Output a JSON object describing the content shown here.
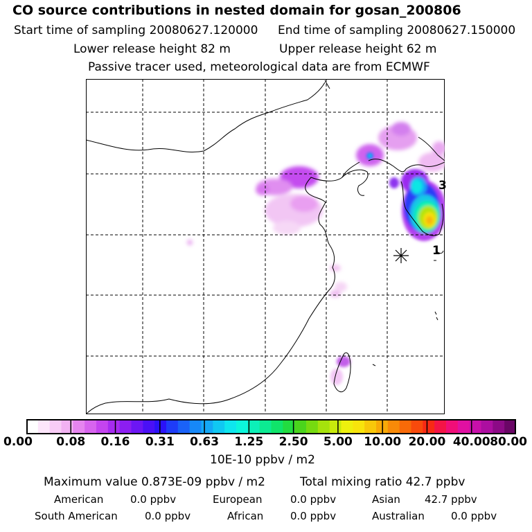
{
  "header": {
    "title": "CO  source contributions in nested domain for gosan_200806",
    "start_time": "Start time of sampling 20080627.120000",
    "end_time": "End time of sampling 20080627.150000",
    "lower_height": "Lower release height   82 m",
    "upper_height": "Upper release height   62 m",
    "tracer_note": "Passive tracer used, meteorological data are from ECMWF"
  },
  "map": {
    "station_symbol": "receptor-star-icon",
    "marker_1": "1",
    "marker_3": "3"
  },
  "colorbar": {
    "tick_labels": [
      "0.00",
      "0.08",
      "0.16",
      "0.31",
      "0.63",
      "1.25",
      "2.50",
      "5.00",
      "10.00",
      "20.00",
      "40.00",
      "80.00"
    ],
    "units": "10E-10 ppbv / m2",
    "colors": [
      "#ffffff",
      "#fde6fb",
      "#f8ccf6",
      "#f2b2f2",
      "#e685ef",
      "#d764ee",
      "#c444ef",
      "#a62bf0",
      "#8c1ef2",
      "#6c16f4",
      "#4a10f6",
      "#2a12f8",
      "#1e3cf8",
      "#1a62f8",
      "#1688f8",
      "#14a8f6",
      "#10c8f2",
      "#0ee6ee",
      "#0cf6dc",
      "#0cf0b8",
      "#0cea92",
      "#10e46a",
      "#22dc40",
      "#4ad41c",
      "#76da10",
      "#a6e20c",
      "#c8ea0c",
      "#eef00e",
      "#f8e40c",
      "#f8c80a",
      "#f8aa08",
      "#f88a08",
      "#f86a08",
      "#f84a0c",
      "#f82a14",
      "#f41446",
      "#f00e78",
      "#e010a2",
      "#c810aa",
      "#ac0ea0",
      "#8c0a86",
      "#6a0666"
    ]
  },
  "stats": {
    "max_value": "Maximum value  0.873E-09 ppbv / m2",
    "total_mixing": "Total mixing ratio       42.7 ppbv",
    "american_label": "American",
    "american_value": "0.0 ppbv",
    "european_label": "European",
    "european_value": "0.0 ppbv",
    "asian_label": "Asian",
    "asian_value": "42.7 ppbv",
    "south_american_label": "South American",
    "south_american_value": "0.0 ppbv",
    "african_label": "African",
    "african_value": "0.0 ppbv",
    "australian_label": "Australian",
    "australian_value": "0.0 ppbv"
  }
}
